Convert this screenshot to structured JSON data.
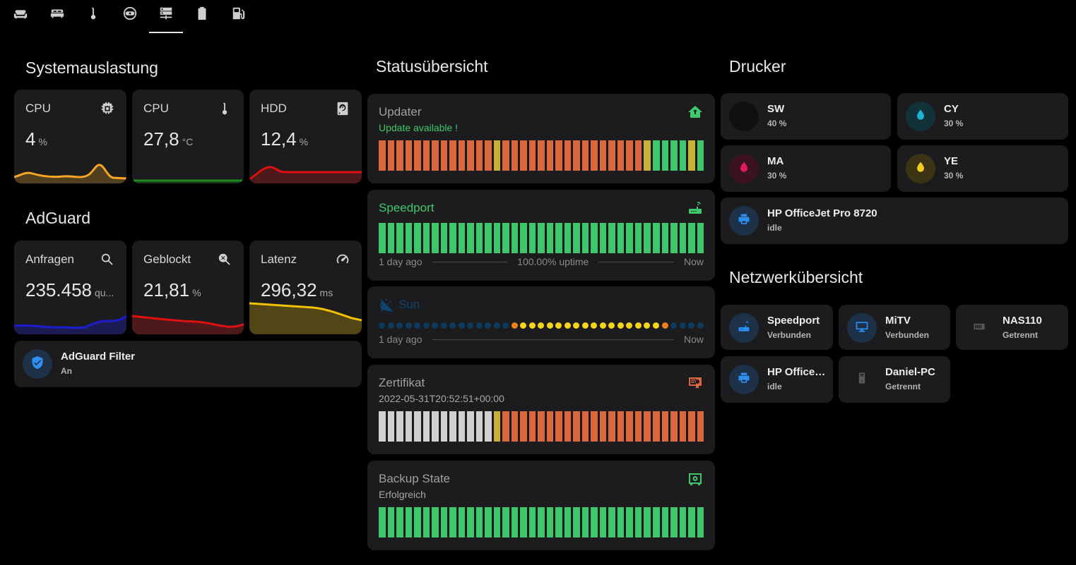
{
  "nav": {
    "tabs": [
      {
        "icon": "sofa-icon",
        "active": false
      },
      {
        "icon": "bed-icon",
        "active": false
      },
      {
        "icon": "thermometer-icon",
        "active": false
      },
      {
        "icon": "robot-vacuum-icon",
        "active": false
      },
      {
        "icon": "server-icon",
        "active": true
      },
      {
        "icon": "battery-icon",
        "active": false
      },
      {
        "icon": "gas-station-icon",
        "active": false
      }
    ]
  },
  "system": {
    "title": "Systemauslastung",
    "cards": [
      {
        "name": "CPU",
        "value": "4",
        "unit": "%",
        "icon": "chip-icon",
        "color": "#f5a623"
      },
      {
        "name": "CPU",
        "value": "27,8",
        "unit": "°C",
        "icon": "thermometer-icon",
        "color": "#1c8a1c"
      },
      {
        "name": "HDD",
        "value": "12,4",
        "unit": "%",
        "icon": "harddisk-icon",
        "color": "#e01010"
      }
    ]
  },
  "adguard": {
    "title": "AdGuard",
    "cards": [
      {
        "name": "Anfragen",
        "value": "235.458",
        "unit": "qu...",
        "icon": "magnify-icon",
        "color": "#1d1dd0"
      },
      {
        "name": "Geblockt",
        "value": "21,81",
        "unit": "%",
        "icon": "magnify-close-icon",
        "color": "#e01010"
      },
      {
        "name": "Latenz",
        "value": "296,32",
        "unit": "ms",
        "icon": "speedometer-icon",
        "color": "#f2c200"
      }
    ],
    "filter": {
      "name": "AdGuard Filter",
      "state": "An",
      "icon": "shield-check-icon"
    }
  },
  "status": {
    "title": "Statusübersicht",
    "updater": {
      "title": "Updater",
      "subtitle": "Update available !",
      "icon": "home-update-icon",
      "colors": {
        "green": "#3fc86b",
        "orange": "#d9683e",
        "yellow": "#c9b037",
        "grey": "#d0d0d0"
      },
      "bars": [
        "o",
        "o",
        "o",
        "o",
        "o",
        "o",
        "o",
        "o",
        "o",
        "o",
        "o",
        "o",
        "o",
        "y",
        "o",
        "o",
        "o",
        "o",
        "o",
        "o",
        "o",
        "o",
        "o",
        "o",
        "o",
        "o",
        "o",
        "o",
        "o",
        "o",
        "y",
        "g",
        "g",
        "g",
        "g",
        "y",
        "g"
      ]
    },
    "speedport": {
      "title": "Speedport",
      "icon": "router-icon",
      "bar_count": 37,
      "timeline": {
        "left": "1 day ago",
        "mid": "100.00% uptime",
        "right": "Now"
      }
    },
    "sun": {
      "title": "Sun",
      "icon": "sun-off-icon",
      "colors": {
        "navy": "#0e3a5c",
        "orange": "#ef7f1a",
        "yellow": "#f5d418"
      },
      "dots": [
        "n",
        "n",
        "n",
        "n",
        "n",
        "n",
        "n",
        "n",
        "n",
        "n",
        "n",
        "n",
        "n",
        "n",
        "n",
        "o",
        "y",
        "y",
        "y",
        "y",
        "y",
        "y",
        "y",
        "y",
        "y",
        "y",
        "y",
        "y",
        "y",
        "y",
        "y",
        "y",
        "o",
        "n",
        "n",
        "n",
        "n"
      ],
      "timeline": {
        "left": "1 day ago",
        "right": "Now"
      }
    },
    "zertifikat": {
      "title": "Zertifikat",
      "subtitle": "2022-05-31T20:52:51+00:00",
      "icon": "certificate-icon",
      "bars": [
        "w",
        "w",
        "w",
        "w",
        "w",
        "w",
        "w",
        "w",
        "w",
        "w",
        "w",
        "w",
        "w",
        "y",
        "o",
        "o",
        "o",
        "o",
        "o",
        "o",
        "o",
        "o",
        "o",
        "o",
        "o",
        "o",
        "o",
        "o",
        "o",
        "o",
        "o",
        "o",
        "o",
        "o",
        "o",
        "o",
        "o"
      ]
    },
    "backup": {
      "title": "Backup State",
      "subtitle": "Erfolgreich",
      "icon": "safe-icon",
      "bar_count": 37
    }
  },
  "printer": {
    "title": "Drucker",
    "inks": [
      {
        "name": "SW",
        "state": "40 %",
        "color": "#111111",
        "bg": "#101010"
      },
      {
        "name": "CY",
        "state": "30 %",
        "color": "#1bb5d3",
        "bg": "#12323a"
      },
      {
        "name": "MA",
        "state": "30 %",
        "color": "#e3195a",
        "bg": "#3a1222"
      },
      {
        "name": "YE",
        "state": "30 %",
        "color": "#f1cd1d",
        "bg": "#3a3414"
      }
    ],
    "device": {
      "name": "HP OfficeJet Pro 8720",
      "state": "idle",
      "icon": "printer-icon"
    }
  },
  "network": {
    "title": "Netzwerkübersicht",
    "devices": [
      {
        "name": "Speedport",
        "state": "Verbunden",
        "icon": "router-icon",
        "active": true
      },
      {
        "name": "MiTV",
        "state": "Verbunden",
        "icon": "monitor-icon",
        "active": true
      },
      {
        "name": "NAS110",
        "state": "Getrennt",
        "icon": "nas-icon",
        "active": false
      },
      {
        "name": "HP OfficeJ...",
        "state": "idle",
        "icon": "printer-icon",
        "active": true
      },
      {
        "name": "Daniel-PC",
        "state": "Getrennt",
        "icon": "desktop-tower-icon",
        "active": false
      }
    ]
  }
}
